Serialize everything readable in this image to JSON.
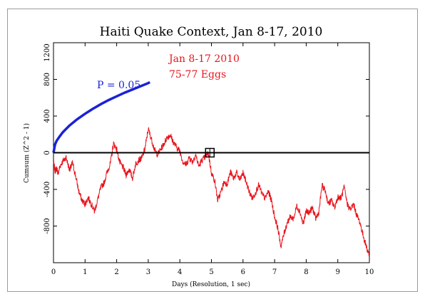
{
  "chart_data": {
    "type": "line",
    "title": "Haiti Quake Context, Jan 8-17, 2010",
    "xlabel": "Days (Resolution, 1 sec)",
    "ylabel": "Cumsum (Z^2 - 1)",
    "xlim": [
      0,
      10
    ],
    "ylim": [
      -1200,
      1200
    ],
    "x_ticks": [
      "0",
      "1",
      "2",
      "3",
      "4",
      "5",
      "6",
      "7",
      "8",
      "9",
      "10"
    ],
    "y_ticks": [
      "-800",
      "-400",
      "0",
      "400",
      "800",
      "1200"
    ],
    "annotation_lines": [
      "Jan 8-17 2010",
      "75-77 Eggs"
    ],
    "marker": {
      "x": 4.95,
      "y": 0
    },
    "colors": {
      "data": "#e8141c",
      "envelope": "#1a22d6",
      "axis": "#000000",
      "annotation": "#e8141c"
    },
    "series": [
      {
        "label": "P = 0.05",
        "role": "envelope",
        "x": [
          0,
          0.05,
          0.1,
          0.2,
          0.3,
          0.5,
          0.75,
          1.0,
          1.25,
          1.5,
          1.75,
          2.0,
          2.25,
          2.5,
          2.75,
          3.0,
          3.05
        ],
        "y": [
          0,
          90,
          130,
          180,
          225,
          295,
          365,
          425,
          480,
          530,
          575,
          615,
          655,
          690,
          725,
          760,
          770
        ]
      },
      {
        "role": "data",
        "x": [
          0,
          0.05,
          0.1,
          0.15,
          0.2,
          0.3,
          0.4,
          0.5,
          0.55,
          0.6,
          0.7,
          0.8,
          0.9,
          1.0,
          1.1,
          1.2,
          1.3,
          1.4,
          1.5,
          1.6,
          1.7,
          1.8,
          1.9,
          2.0,
          2.1,
          2.2,
          2.3,
          2.4,
          2.5,
          2.6,
          2.7,
          2.8,
          2.9,
          3.0,
          3.1,
          3.2,
          3.3,
          3.4,
          3.5,
          3.6,
          3.7,
          3.8,
          3.9,
          4.0,
          4.1,
          4.2,
          4.3,
          4.4,
          4.5,
          4.6,
          4.7,
          4.8,
          4.9,
          5.0,
          5.1,
          5.2,
          5.3,
          5.4,
          5.5,
          5.6,
          5.7,
          5.8,
          5.9,
          6.0,
          6.1,
          6.2,
          6.3,
          6.4,
          6.5,
          6.6,
          6.7,
          6.8,
          6.9,
          7.0,
          7.1,
          7.2,
          7.3,
          7.4,
          7.5,
          7.6,
          7.7,
          7.8,
          7.9,
          8.0,
          8.1,
          8.2,
          8.3,
          8.4,
          8.5,
          8.6,
          8.7,
          8.8,
          8.9,
          9.0,
          9.1,
          9.2,
          9.3,
          9.4,
          9.5,
          9.6,
          9.7,
          9.8,
          9.9,
          10.0
        ],
        "y": [
          -100,
          -200,
          -170,
          -230,
          -150,
          -90,
          -50,
          -180,
          -160,
          -110,
          -250,
          -420,
          -520,
          -560,
          -490,
          -560,
          -640,
          -510,
          -380,
          -330,
          -210,
          -120,
          100,
          40,
          -110,
          -160,
          -240,
          -180,
          -280,
          -120,
          -80,
          -60,
          50,
          260,
          150,
          30,
          -20,
          40,
          100,
          170,
          190,
          110,
          60,
          20,
          -100,
          -130,
          -50,
          -100,
          -20,
          -150,
          -80,
          -50,
          0,
          -220,
          -300,
          -520,
          -430,
          -320,
          -340,
          -210,
          -280,
          -220,
          -300,
          -220,
          -320,
          -430,
          -500,
          -430,
          -350,
          -450,
          -500,
          -420,
          -520,
          -700,
          -820,
          -1020,
          -880,
          -760,
          -700,
          -720,
          -580,
          -640,
          -780,
          -640,
          -650,
          -600,
          -720,
          -650,
          -360,
          -410,
          -560,
          -520,
          -600,
          -480,
          -500,
          -380,
          -560,
          -620,
          -560,
          -680,
          -760,
          -900,
          -1020,
          -1120
        ]
      }
    ]
  }
}
